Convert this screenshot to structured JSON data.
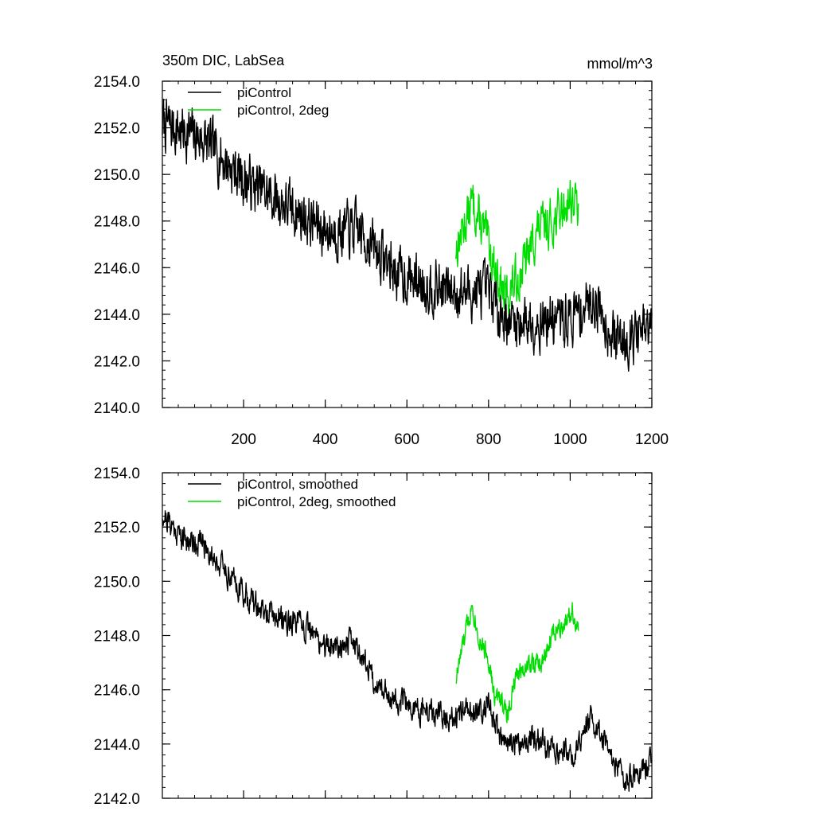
{
  "chart_data": [
    {
      "type": "line",
      "title": "350m DIC, LabSea",
      "units": "mmol/m^3",
      "xlim": [
        1,
        1200
      ],
      "ylim": [
        2140.0,
        2154.0
      ],
      "xticks": [
        200,
        400,
        600,
        800,
        1000,
        1200
      ],
      "xticklabels": [
        "200",
        "400",
        "600",
        "800",
        "1000",
        "1200"
      ],
      "yticks": [
        2140,
        2142,
        2144,
        2146,
        2148,
        2150,
        2152,
        2154
      ],
      "yticklabels": [
        "2140.0",
        "2142.0",
        "2144.0",
        "2146.0",
        "2148.0",
        "2150.0",
        "2152.0",
        "2154.0"
      ],
      "legend_position": "top-left",
      "series": [
        {
          "name": "piControl",
          "color": "#000000",
          "x_start": 1,
          "x_end": 1200,
          "trend": [
            [
              1,
              2152.2
            ],
            [
              100,
              2151.5
            ],
            [
              200,
              2149.8
            ],
            [
              300,
              2148.7
            ],
            [
              400,
              2147.6
            ],
            [
              480,
              2147.6
            ],
            [
              580,
              2145.7
            ],
            [
              700,
              2145.0
            ],
            [
              800,
              2144.9
            ],
            [
              850,
              2143.7
            ],
            [
              1000,
              2143.8
            ],
            [
              1060,
              2144.7
            ],
            [
              1110,
              2142.9
            ],
            [
              1200,
              2143.3
            ]
          ],
          "noise_amplitude": 1.3,
          "seed": 7
        },
        {
          "name": "piControl, 2deg",
          "color": "#00dd00",
          "x_start": 720,
          "x_end": 1020,
          "trend": [
            [
              720,
              2146.8
            ],
            [
              760,
              2148.8
            ],
            [
              800,
              2147.0
            ],
            [
              840,
              2144.7
            ],
            [
              880,
              2145.8
            ],
            [
              920,
              2147.6
            ],
            [
              960,
              2148.0
            ],
            [
              1000,
              2149.0
            ],
            [
              1020,
              2148.6
            ]
          ],
          "noise_amplitude": 1.1,
          "seed": 13
        }
      ]
    },
    {
      "type": "line",
      "xlim": [
        1,
        1200
      ],
      "ylim": [
        2142.0,
        2154.0
      ],
      "xticks": [
        200,
        400,
        600,
        800,
        1000,
        1200
      ],
      "xticklabels": [],
      "yticks": [
        2142,
        2144,
        2146,
        2148,
        2150,
        2152,
        2154
      ],
      "yticklabels": [
        "2142.0",
        "2144.0",
        "2146.0",
        "2148.0",
        "2150.0",
        "2152.0",
        "2154.0"
      ],
      "legend_position": "top-left",
      "series": [
        {
          "name": "piControl, smoothed",
          "color": "#000000",
          "x_start": 1,
          "x_end": 1200,
          "trend": [
            [
              1,
              2152.5
            ],
            [
              50,
              2151.6
            ],
            [
              100,
              2151.4
            ],
            [
              150,
              2150.5
            ],
            [
              200,
              2149.6
            ],
            [
              250,
              2148.8
            ],
            [
              300,
              2148.6
            ],
            [
              350,
              2148.3
            ],
            [
              400,
              2147.6
            ],
            [
              470,
              2147.8
            ],
            [
              530,
              2146.1
            ],
            [
              600,
              2145.4
            ],
            [
              700,
              2144.9
            ],
            [
              800,
              2145.4
            ],
            [
              840,
              2143.9
            ],
            [
              900,
              2144.2
            ],
            [
              1000,
              2143.6
            ],
            [
              1050,
              2144.9
            ],
            [
              1100,
              2143.5
            ],
            [
              1140,
              2142.6
            ],
            [
              1200,
              2143.4
            ]
          ],
          "noise_amplitude": 0.55,
          "seed": 21
        },
        {
          "name": "piControl, 2deg, smoothed",
          "color": "#00dd00",
          "x_start": 720,
          "x_end": 1020,
          "trend": [
            [
              720,
              2146.4
            ],
            [
              745,
              2148.2
            ],
            [
              760,
              2149.2
            ],
            [
              775,
              2148.0
            ],
            [
              800,
              2147.2
            ],
            [
              815,
              2145.6
            ],
            [
              830,
              2145.8
            ],
            [
              845,
              2145.0
            ],
            [
              870,
              2146.6
            ],
            [
              900,
              2147.0
            ],
            [
              930,
              2146.9
            ],
            [
              960,
              2148.2
            ],
            [
              990,
              2148.6
            ],
            [
              1005,
              2149.0
            ],
            [
              1020,
              2148.0
            ]
          ],
          "noise_amplitude": 0.45,
          "seed": 33
        }
      ]
    }
  ]
}
